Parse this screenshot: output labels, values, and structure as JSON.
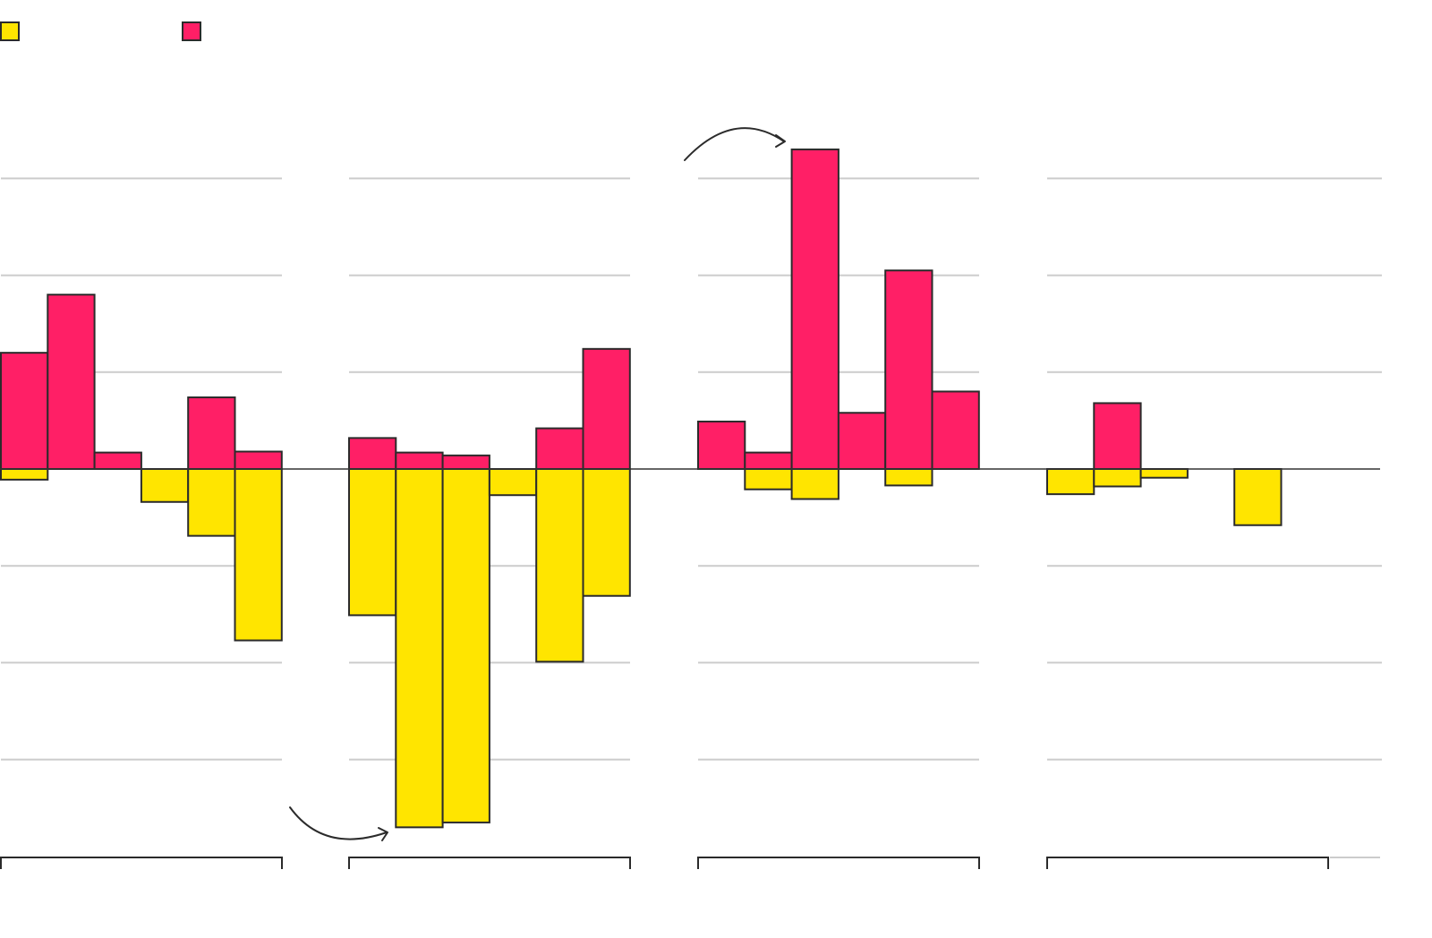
{
  "chart_data": {
    "type": "bar",
    "title": "",
    "xlabel": "",
    "ylabel": "",
    "ylim": [
      -3.9,
      3.8
    ],
    "grid": true,
    "legend": "top-left",
    "colors": {
      "series_a": "#FFE500",
      "series_b": "#FF1F66"
    },
    "panels": [
      {
        "series": [
          {
            "name": "",
            "color": "#FFE500",
            "values": [
              -0.11,
              0,
              0,
              -0.34,
              -0.69,
              -1.77
            ]
          },
          {
            "name": "",
            "color": "#FF1F66",
            "values": [
              1.2,
              1.8,
              0.17,
              0,
              0.74,
              0.18
            ]
          }
        ]
      },
      {
        "series": [
          {
            "name": "",
            "color": "#FFE500",
            "values": [
              -1.51,
              -3.7,
              -3.65,
              -0.27,
              -1.99,
              -1.31
            ]
          },
          {
            "name": "",
            "color": "#FF1F66",
            "values": [
              0.32,
              0.17,
              0.14,
              0,
              0.42,
              1.24
            ]
          }
        ]
      },
      {
        "series": [
          {
            "name": "",
            "color": "#FFE500",
            "values": [
              0,
              -0.21,
              -0.31,
              0,
              -0.17,
              0
            ]
          },
          {
            "name": "",
            "color": "#FF1F66",
            "values": [
              0.49,
              0.17,
              3.3,
              0.58,
              2.05,
              0.8
            ]
          }
        ]
      },
      {
        "series": [
          {
            "name": "",
            "color": "#FFE500",
            "values": [
              -0.26,
              -0.18,
              -0.09,
              0,
              -0.58,
              0
            ]
          },
          {
            "name": "",
            "color": "#FF1F66",
            "values": [
              0,
              0.68,
              0,
              0,
              0,
              0
            ]
          }
        ]
      }
    ],
    "annotations": [
      {
        "type": "arrow",
        "panel": 1,
        "target_bar": 1,
        "direction": "pointing-right-down"
      },
      {
        "type": "arrow",
        "panel": 2,
        "target_bar": 2,
        "direction": "pointing-right-up"
      }
    ]
  }
}
